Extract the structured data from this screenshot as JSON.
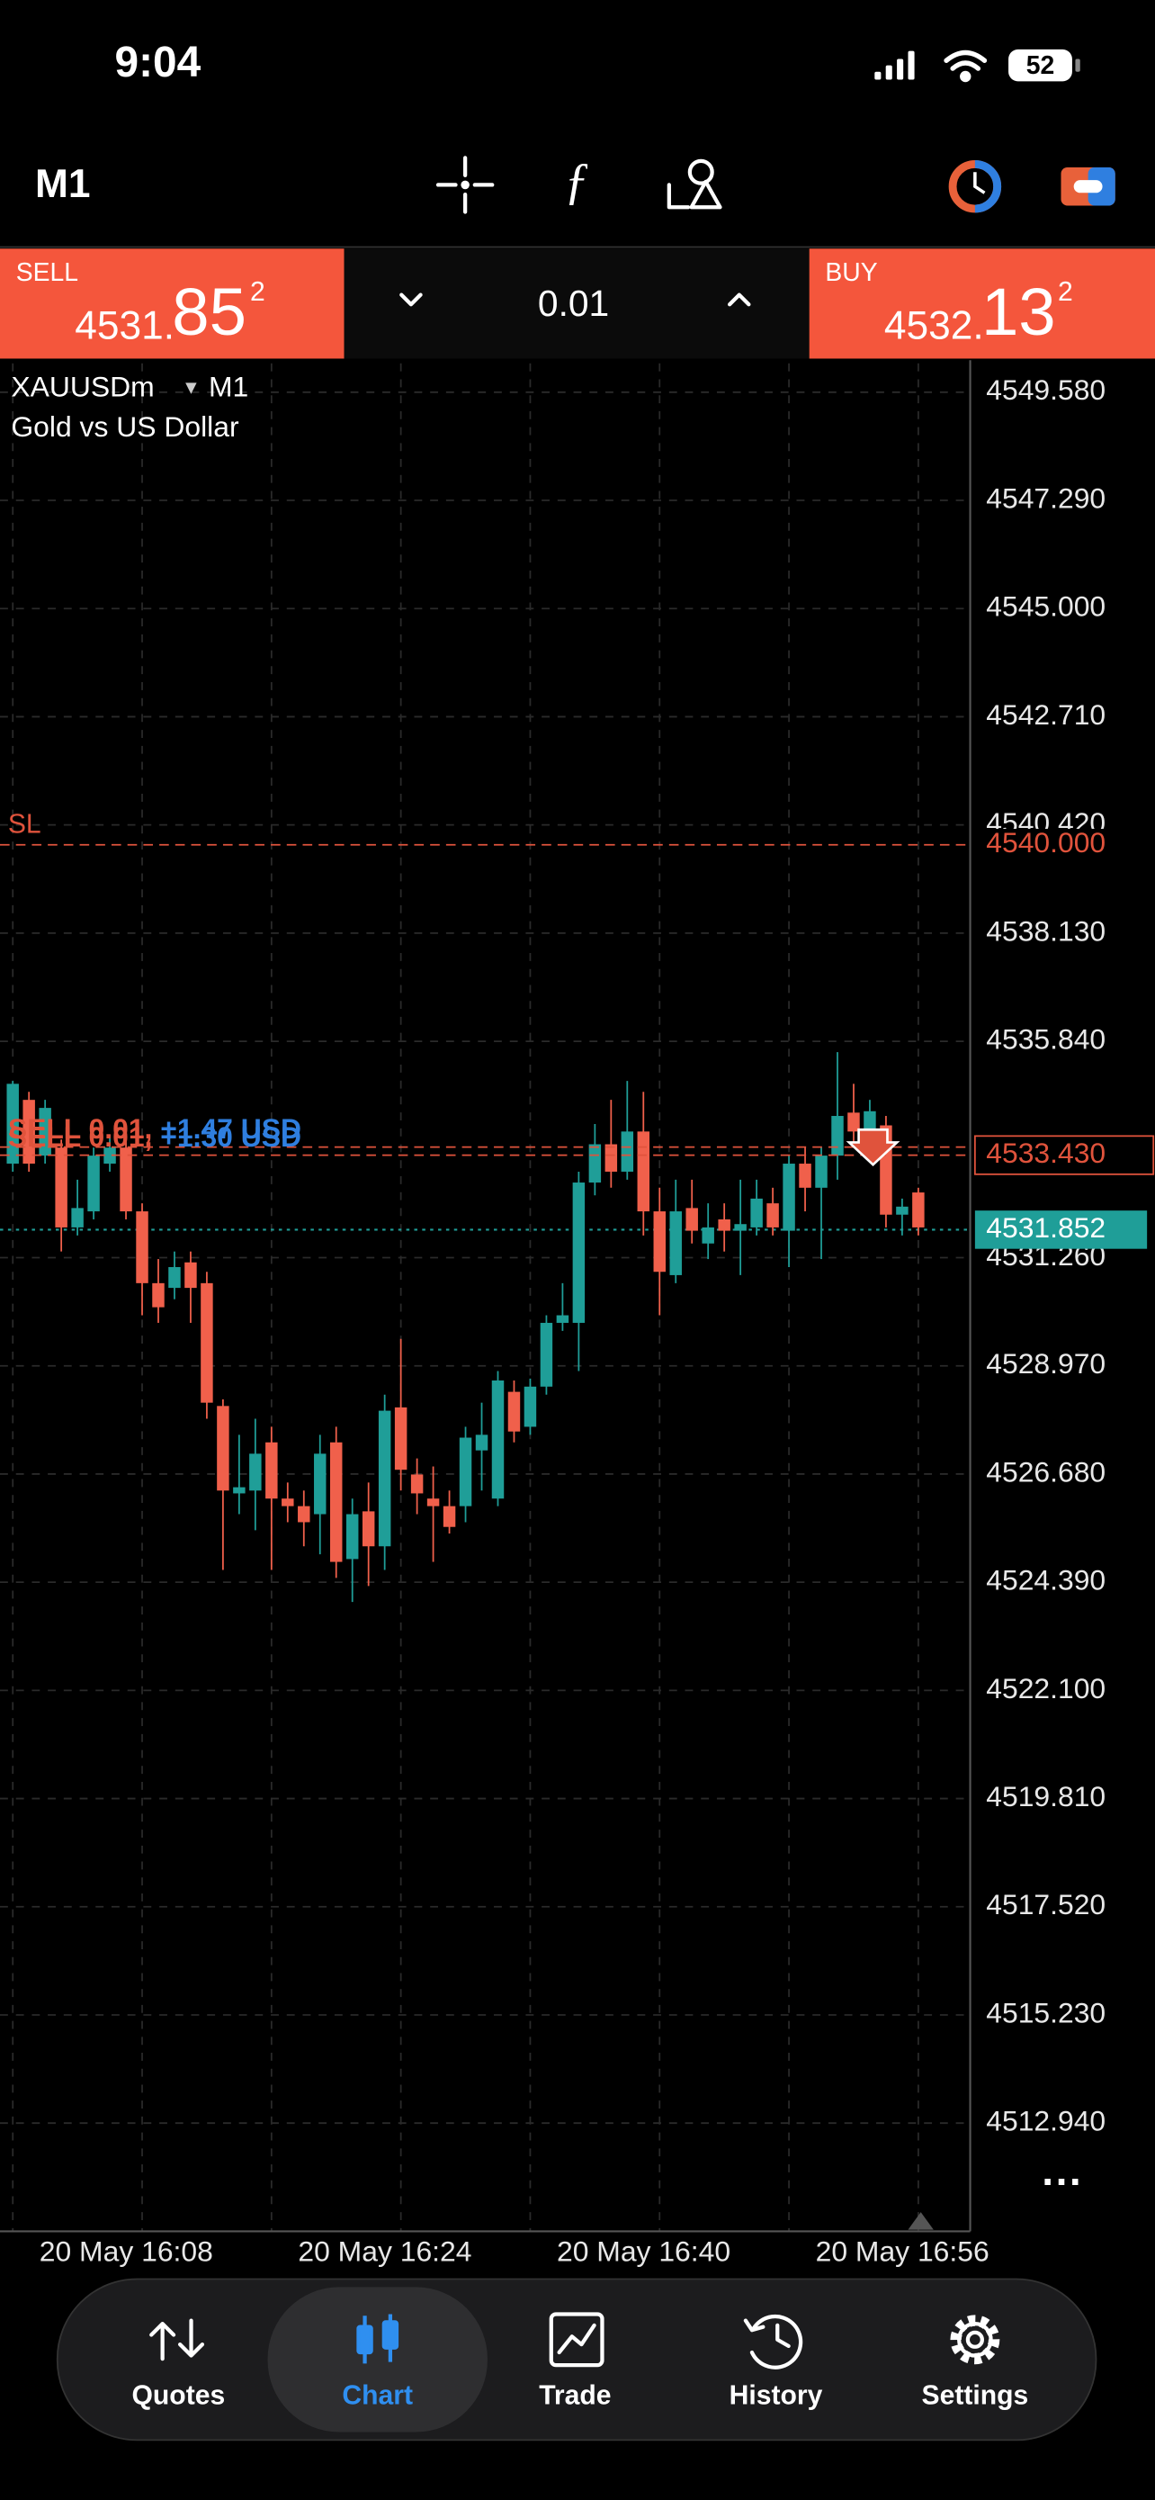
{
  "status_bar": {
    "time": "9:04",
    "battery": "52"
  },
  "toolbar": {
    "timeframe": "M1"
  },
  "trade_panel": {
    "sell": {
      "label": "SELL",
      "price_main": "4531.",
      "price_big": "85",
      "price_sup": "2"
    },
    "volume": "0.01",
    "buy": {
      "label": "BUY",
      "price_main": "4532.",
      "price_big": "13",
      "price_sup": "2"
    }
  },
  "chart_data": {
    "type": "candlestick",
    "symbol": "XAUUSDm",
    "timeframe": "M1",
    "subtitle": "Gold vs US Dollar",
    "up_color": "#1f9e98",
    "down_color": "#f0604b",
    "open": [
      4533.25,
      4534.6,
      4533.42,
      4533.59,
      4531.9,
      4532.24,
      4533.25,
      4533.59,
      4532.24,
      4530.72,
      4530.62,
      4531.16,
      4530.72,
      4528.12,
      4526.27,
      4526.33,
      4527.35,
      4526.16,
      4526.0,
      4525.83,
      4527.35,
      4524.88,
      4525.89,
      4525.15,
      4528.09,
      4526.67,
      4526.16,
      4526.0,
      4526.0,
      4527.18,
      4526.16,
      4528.42,
      4527.68,
      4528.53,
      4529.88,
      4529.88,
      4532.85,
      4533.66,
      4533.08,
      4533.93,
      4532.24,
      4530.89,
      4532.31,
      4531.56,
      4532.07,
      4531.83,
      4531.9,
      4532.41,
      4531.83,
      4533.25,
      4532.74,
      4533.42,
      4534.33,
      4533.86,
      4534.06,
      4532.17,
      4532.64
    ],
    "high": [
      4535.0,
      4534.77,
      4534.6,
      4533.76,
      4532.91,
      4533.59,
      4533.86,
      4533.76,
      4532.41,
      4531.23,
      4531.39,
      4531.39,
      4530.96,
      4528.26,
      4527.51,
      4527.85,
      4527.68,
      4526.5,
      4526.33,
      4527.51,
      4527.68,
      4526.16,
      4526.5,
      4528.36,
      4529.54,
      4527.01,
      4526.84,
      4526.33,
      4527.68,
      4528.19,
      4528.86,
      4528.66,
      4528.7,
      4530.04,
      4530.72,
      4533.08,
      4534.09,
      4534.6,
      4535.0,
      4534.77,
      4532.74,
      4532.91,
      4532.91,
      4532.41,
      4532.41,
      4532.91,
      4532.91,
      4532.74,
      4533.42,
      4533.59,
      4533.59,
      4535.61,
      4534.94,
      4534.6,
      4534.26,
      4532.51,
      4532.74
    ],
    "low": [
      4533.08,
      4533.08,
      4533.25,
      4531.39,
      4531.73,
      4532.07,
      4533.08,
      4532.07,
      4530.04,
      4529.88,
      4530.38,
      4529.88,
      4527.85,
      4524.65,
      4525.83,
      4525.49,
      4524.65,
      4525.66,
      4525.15,
      4524.98,
      4524.48,
      4523.97,
      4524.31,
      4524.65,
      4526.33,
      4525.83,
      4524.82,
      4525.42,
      4525.66,
      4526.33,
      4526.0,
      4527.35,
      4527.51,
      4528.36,
      4529.71,
      4528.86,
      4532.58,
      4532.74,
      4532.91,
      4531.73,
      4530.04,
      4530.72,
      4531.56,
      4531.23,
      4531.39,
      4530.89,
      4531.73,
      4531.73,
      4531.06,
      4532.24,
      4531.23,
      4532.91,
      4533.59,
      4533.76,
      4531.9,
      4531.73,
      4531.73
    ],
    "close": [
      4534.94,
      4533.25,
      4534.43,
      4531.9,
      4532.31,
      4533.42,
      4533.59,
      4532.24,
      4530.72,
      4530.21,
      4531.06,
      4530.62,
      4528.19,
      4526.33,
      4526.4,
      4527.11,
      4526.16,
      4526.0,
      4525.66,
      4527.11,
      4524.82,
      4525.83,
      4525.15,
      4528.02,
      4526.77,
      4526.27,
      4526.0,
      4525.56,
      4527.45,
      4527.51,
      4528.66,
      4527.58,
      4528.53,
      4529.88,
      4530.04,
      4532.85,
      4533.66,
      4533.08,
      4533.93,
      4532.24,
      4530.96,
      4532.24,
      4531.83,
      4531.9,
      4531.83,
      4531.97,
      4532.51,
      4531.9,
      4533.25,
      4532.74,
      4533.42,
      4534.26,
      4533.93,
      4534.36,
      4532.17,
      4532.34,
      4531.9
    ],
    "xlim": [
      -0.79,
      59.11
    ],
    "xticks": [
      {
        "value": 8,
        "label": "20 May 16:08"
      },
      {
        "value": 24,
        "label": "20 May 16:24"
      },
      {
        "value": 40,
        "label": "20 May 16:40"
      },
      {
        "value": 56,
        "label": "20 May 16:56"
      }
    ],
    "ylim": [
      4510.65,
      4550.19
    ],
    "yticks": [
      {
        "value": 4549.58,
        "label": "4549.580"
      },
      {
        "value": 4547.29,
        "label": "4547.290"
      },
      {
        "value": 4545,
        "label": "4545.000"
      },
      {
        "value": 4542.71,
        "label": "4542.710"
      },
      {
        "value": 4540.42,
        "label": "4540.420"
      },
      {
        "value": 4538.13,
        "label": "4538.130"
      },
      {
        "value": 4535.84,
        "label": "4535.840"
      },
      {
        "value": 4531.26,
        "label": "4531.260"
      },
      {
        "value": 4528.97,
        "label": "4528.970"
      },
      {
        "value": 4526.68,
        "label": "4526.680"
      },
      {
        "value": 4524.39,
        "label": "4524.390"
      },
      {
        "value": 4522.1,
        "label": "4522.100"
      },
      {
        "value": 4519.81,
        "label": "4519.810"
      },
      {
        "value": 4517.52,
        "label": "4517.520"
      },
      {
        "value": 4515.23,
        "label": "4515.230"
      },
      {
        "value": 4512.94,
        "label": "4512.940"
      }
    ],
    "grid": true,
    "stop_loss": {
      "label": "SL",
      "price": {
        "value": 4540,
        "label": "4540.000"
      },
      "color": "#e0533c"
    },
    "orders": [
      {
        "label": "SELL 0.01,",
        "profit": "+1.47 USD",
        "price": 4533.6
      },
      {
        "label": "SELL 0.01,",
        "profit": "+1.30 USD",
        "price": {
          "value": 4533.43,
          "label": "4533.430"
        }
      }
    ],
    "order_color": "#e0533c",
    "profit_color": "#2f7fe0",
    "bid": {
      "value": 4531.852,
      "label": "4531.852"
    },
    "bid_color": "#1f9e98"
  },
  "tab_bar": {
    "tabs": [
      "Quotes",
      "Chart",
      "Trade",
      "History",
      "Settings"
    ],
    "active": 1
  }
}
